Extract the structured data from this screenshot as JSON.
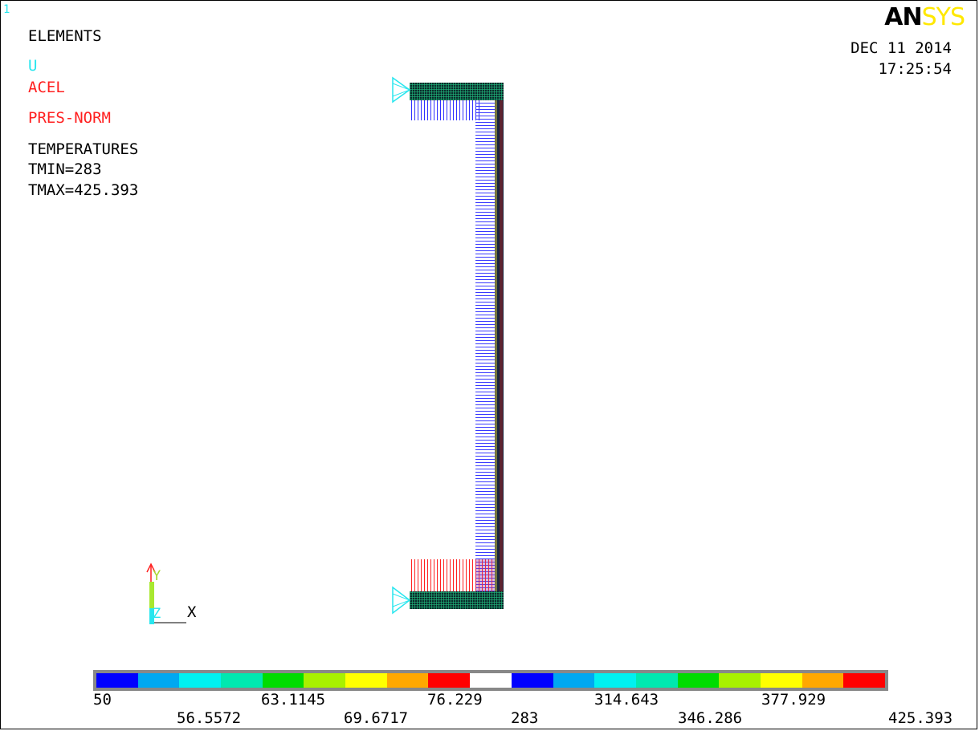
{
  "window_number": "1",
  "logo": {
    "part1": "AN",
    "part2": "SYS"
  },
  "date": "DEC 11 2014",
  "time": "17:25:54",
  "labels": {
    "elements": "ELEMENTS",
    "u": "U",
    "acel": "ACEL",
    "pres": "PRES-NORM",
    "temperatures": "TEMPERATURES",
    "tmin": "TMIN=283",
    "tmax": "TMAX=425.393"
  },
  "triad": {
    "y": "Y",
    "z": "Z",
    "x": "X"
  },
  "legend": {
    "colors": [
      "#0000ff",
      "#00a8f0",
      "#00f0f0",
      "#00e8b0",
      "#00dc00",
      "#a8f000",
      "#ffff00",
      "#ffa800",
      "#ff0000",
      "#ffffff",
      "#0000ff",
      "#00a8f0",
      "#00f0f0",
      "#00e8b0",
      "#00dc00",
      "#a8f000",
      "#ffff00",
      "#ffa800",
      "#ff0000"
    ],
    "top_labels": [
      "50",
      "63.1145",
      "76.229",
      "314.643",
      "377.929"
    ],
    "bottom_labels": [
      "56.5572",
      "69.6717",
      "283",
      "346.286",
      "425.393"
    ]
  }
}
